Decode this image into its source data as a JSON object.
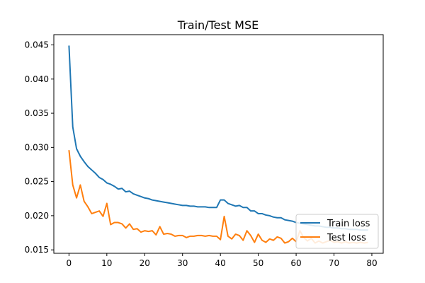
{
  "chart_data": {
    "type": "line",
    "title": "Train/Test MSE",
    "xlabel": "",
    "ylabel": "",
    "xlim": [
      -4,
      83
    ],
    "ylim": [
      0.0145,
      0.0465
    ],
    "xticks": [
      0,
      10,
      20,
      30,
      40,
      50,
      60,
      70,
      80
    ],
    "yticks": [
      0.015,
      0.02,
      0.025,
      0.03,
      0.035,
      0.04,
      0.045
    ],
    "ytick_labels": [
      "0.015",
      "0.020",
      "0.025",
      "0.030",
      "0.035",
      "0.040",
      "0.045"
    ],
    "xtick_labels": [
      "0",
      "10",
      "20",
      "30",
      "40",
      "50",
      "60",
      "70",
      "80"
    ],
    "grid": false,
    "legend_position": "bottom-right",
    "series": [
      {
        "name": "Train loss",
        "color": "#1f77b4",
        "x": [
          0,
          1,
          2,
          3,
          4,
          5,
          6,
          7,
          8,
          9,
          10,
          11,
          12,
          13,
          14,
          15,
          16,
          17,
          18,
          19,
          20,
          21,
          22,
          23,
          24,
          25,
          26,
          27,
          28,
          29,
          30,
          31,
          32,
          33,
          34,
          35,
          36,
          37,
          38,
          39,
          40,
          41,
          42,
          43,
          44,
          45,
          46,
          47,
          48,
          49,
          50,
          51,
          52,
          53,
          54,
          55,
          56,
          57,
          58,
          59,
          60,
          61,
          62,
          63,
          64,
          65,
          66,
          67,
          68,
          69,
          70,
          71,
          72,
          73,
          74,
          75,
          76,
          77,
          78,
          79
        ],
        "values": [
          0.0449,
          0.033,
          0.0298,
          0.0287,
          0.0279,
          0.0272,
          0.0267,
          0.0262,
          0.0256,
          0.0253,
          0.0248,
          0.0246,
          0.0243,
          0.0239,
          0.024,
          0.0235,
          0.0236,
          0.0232,
          0.023,
          0.0228,
          0.0226,
          0.0225,
          0.0223,
          0.0222,
          0.0221,
          0.022,
          0.0219,
          0.0218,
          0.0217,
          0.0216,
          0.0215,
          0.0215,
          0.0214,
          0.0214,
          0.0213,
          0.0213,
          0.0213,
          0.0212,
          0.0212,
          0.0212,
          0.0223,
          0.0223,
          0.0218,
          0.0216,
          0.0214,
          0.0215,
          0.0212,
          0.0212,
          0.0207,
          0.0207,
          0.0203,
          0.0203,
          0.0201,
          0.02,
          0.0198,
          0.0197,
          0.0197,
          0.0194,
          0.0193,
          0.0192,
          0.019,
          0.0189,
          0.0188,
          0.0187,
          0.0186,
          0.0185,
          0.0185,
          0.0184,
          0.0183,
          0.0183,
          0.0182,
          0.0182,
          0.0181,
          0.0181,
          0.018,
          0.018,
          0.018,
          0.0179,
          0.0179,
          0.0179
        ]
      },
      {
        "name": "Test loss",
        "color": "#ff7f0e",
        "x": [
          0,
          1,
          2,
          3,
          4,
          5,
          6,
          7,
          8,
          9,
          10,
          11,
          12,
          13,
          14,
          15,
          16,
          17,
          18,
          19,
          20,
          21,
          22,
          23,
          24,
          25,
          26,
          27,
          28,
          29,
          30,
          31,
          32,
          33,
          34,
          35,
          36,
          37,
          38,
          39,
          40,
          41,
          42,
          43,
          44,
          45,
          46,
          47,
          48,
          49,
          50,
          51,
          52,
          53,
          54,
          55,
          56,
          57,
          58,
          59,
          60,
          61,
          62,
          63,
          64,
          65,
          66,
          67,
          68,
          69,
          70,
          71,
          72,
          73,
          74,
          75,
          76,
          77,
          78,
          79
        ],
        "values": [
          0.0296,
          0.0245,
          0.0226,
          0.0245,
          0.0221,
          0.0213,
          0.0203,
          0.0205,
          0.0207,
          0.0199,
          0.0218,
          0.0187,
          0.019,
          0.019,
          0.0188,
          0.0182,
          0.0188,
          0.018,
          0.0181,
          0.0176,
          0.0178,
          0.0177,
          0.0178,
          0.0172,
          0.0184,
          0.0173,
          0.0174,
          0.0173,
          0.017,
          0.0171,
          0.0171,
          0.0168,
          0.017,
          0.017,
          0.0171,
          0.0171,
          0.017,
          0.0171,
          0.017,
          0.017,
          0.0165,
          0.0199,
          0.017,
          0.0166,
          0.0173,
          0.0171,
          0.0164,
          0.0178,
          0.0171,
          0.0161,
          0.0173,
          0.0164,
          0.0161,
          0.0166,
          0.0164,
          0.0169,
          0.0167,
          0.016,
          0.0162,
          0.0167,
          0.0162,
          0.0178,
          0.0168,
          0.0163,
          0.0167,
          0.016,
          0.0163,
          0.016,
          0.0162,
          0.0164,
          0.0161,
          0.0162,
          0.016,
          0.0162,
          0.016,
          0.0161,
          0.016,
          0.0161,
          0.016,
          0.0161
        ]
      }
    ]
  }
}
